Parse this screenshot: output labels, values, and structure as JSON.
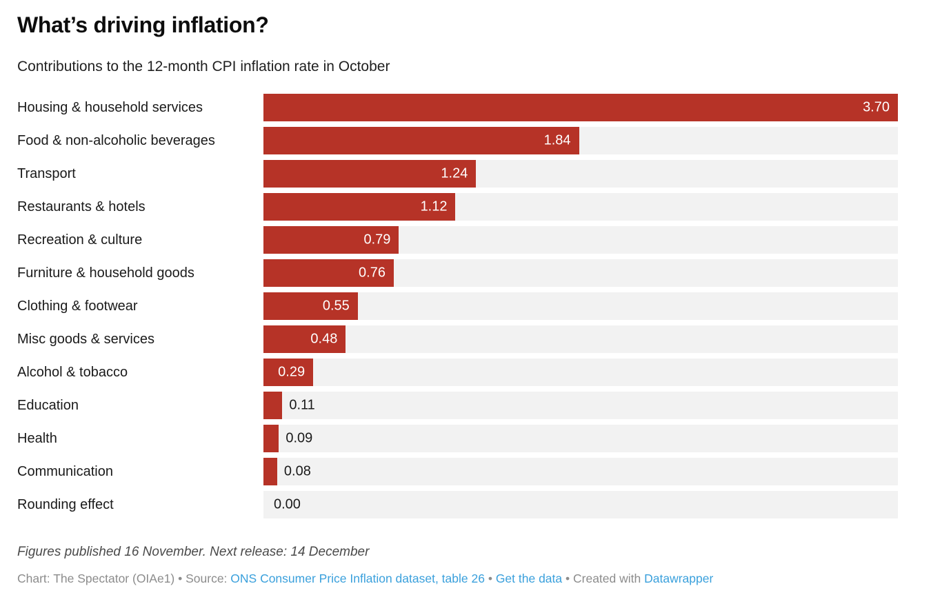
{
  "header": {
    "title": "What’s driving inflation?",
    "subtitle": "Contributions to the 12-month CPI inflation rate in October"
  },
  "chart_data": {
    "type": "bar",
    "orientation": "horizontal",
    "title": "What’s driving inflation?",
    "subtitle": "Contributions to the 12-month CPI inflation rate in October",
    "categories": [
      "Housing & household services",
      "Food & non-alcoholic beverages",
      "Transport",
      "Restaurants & hotels",
      "Recreation & culture",
      "Furniture & household goods",
      "Clothing & footwear",
      "Misc goods & services",
      "Alcohol & tobacco",
      "Education",
      "Health",
      "Communication",
      "Rounding effect"
    ],
    "values": [
      3.7,
      1.84,
      1.24,
      1.12,
      0.79,
      0.76,
      0.55,
      0.48,
      0.29,
      0.11,
      0.09,
      0.08,
      0.0
    ],
    "value_labels": [
      "3.70",
      "1.84",
      "1.24",
      "1.12",
      "0.79",
      "0.76",
      "0.55",
      "0.48",
      "0.29",
      "0.11",
      "0.09",
      "0.08",
      "0.00"
    ],
    "xlabel": "",
    "ylabel": "",
    "xlim": [
      0,
      3.7
    ],
    "grid": false,
    "legend": "none",
    "bar_color": "#b63327",
    "track_color": "#f2f2f2"
  },
  "footer": {
    "footnote": "Figures published 16 November. Next release: 14 December",
    "byline_prefix": "Chart: The Spectator (OIAe1) • Source: ",
    "source_link": "ONS Consumer Price Inflation dataset, table 26",
    "separator": " • ",
    "get_data_link": "Get the data",
    "created_with": "Created with ",
    "datawrapper_link": "Datawrapper",
    "link_color": "#3aa0dc"
  }
}
